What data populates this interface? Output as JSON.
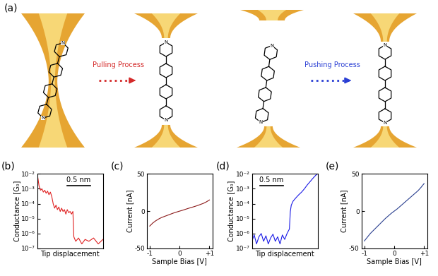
{
  "diagram": {
    "panel_label": "(a)",
    "atom_label": "N",
    "processes": [
      {
        "label": "Pulling Process",
        "color": "#d42a2a"
      },
      {
        "label": "Pushing Process",
        "color": "#2a3fd4"
      }
    ]
  },
  "chart_data": [
    {
      "panel_label": "(b)",
      "type": "line",
      "xlabel": "Tip displacement",
      "ylabel": "Conductance [G₀]",
      "log": "y",
      "tick_labels": "y",
      "color": "#e02020",
      "x": [
        0,
        0.02,
        0.04,
        0.07,
        0.1,
        0.13,
        0.16,
        0.19,
        0.22,
        0.25,
        0.28,
        0.31,
        0.34,
        0.37,
        0.4,
        0.43,
        0.46,
        0.49,
        0.52,
        0.55,
        0.58,
        0.61,
        0.64,
        0.67,
        0.7,
        0.73,
        0.76,
        0.78,
        0.82,
        0.88,
        0.95,
        1.02,
        1.1,
        1.2,
        1.3,
        1.4
      ],
      "values": [
        0.01,
        0.004,
        0.0015,
        0.0008,
        0.001,
        0.0006,
        0.0008,
        0.0005,
        0.0007,
        0.0004,
        0.0006,
        0.0003,
        0.0001,
        5e-05,
        8e-05,
        4e-05,
        6e-05,
        3e-05,
        5e-05,
        3e-05,
        4e-05,
        2e-05,
        4e-05,
        2.5e-05,
        3e-05,
        2e-05,
        3e-05,
        6e-07,
        3e-07,
        5e-07,
        2e-07,
        4e-07,
        3e-07,
        5e-07,
        2e-07,
        4e-07
      ],
      "xlim": [
        0,
        1.4
      ],
      "ylim": [
        1e-07,
        0.01
      ],
      "yticks": [
        {
          "value": 1e-07,
          "label": "10⁻⁷"
        },
        {
          "value": 1e-06,
          "label": "10⁻⁶"
        },
        {
          "value": 1e-05,
          "label": "10⁻⁵"
        },
        {
          "value": 0.0001,
          "label": "10⁻⁴"
        },
        {
          "value": 0.001,
          "label": "10⁻³"
        },
        {
          "value": 0.01,
          "label": "10⁻²"
        }
      ],
      "scale_bar": {
        "label": "0.5 nm",
        "length": 0.5
      }
    },
    {
      "panel_label": "(c)",
      "type": "line",
      "xlabel": "Sample Bias [V]",
      "ylabel": "Current [nA]",
      "color": "#8b1a1a",
      "x": [
        -1,
        -0.9,
        -0.8,
        -0.7,
        -0.6,
        -0.5,
        -0.4,
        -0.3,
        -0.2,
        -0.1,
        0,
        0.1,
        0.2,
        0.3,
        0.4,
        0.5,
        0.6,
        0.7,
        0.8,
        0.9,
        1
      ],
      "values": [
        -20,
        -16,
        -13,
        -10.5,
        -8.5,
        -7,
        -5.5,
        -4,
        -2.5,
        -1.2,
        0,
        1.2,
        2.5,
        3.8,
        5,
        6.2,
        7.5,
        9,
        10.5,
        12.5,
        15
      ],
      "xlim": [
        -1.1,
        1.1
      ],
      "ylim": [
        -50,
        50
      ],
      "xticks": [
        -1,
        0,
        {
          "value": 1,
          "label": "+1"
        }
      ],
      "yticks": [
        -50,
        0,
        50
      ]
    },
    {
      "panel_label": "(d)",
      "type": "line",
      "xlabel": "Tip displacement",
      "ylabel": "Conductance [G₀]",
      "log": "y",
      "tick_labels": "y",
      "color": "#1a1ae6",
      "x": [
        0,
        0.05,
        0.1,
        0.15,
        0.2,
        0.25,
        0.3,
        0.35,
        0.4,
        0.45,
        0.5,
        0.55,
        0.6,
        0.65,
        0.7,
        0.75,
        0.8,
        0.82,
        0.84,
        0.88,
        0.94,
        1.0,
        1.06,
        1.12,
        1.18,
        1.24,
        1.3,
        1.36,
        1.4
      ],
      "values": [
        3e-07,
        8e-07,
        2e-07,
        6e-07,
        1e-06,
        3e-07,
        7e-07,
        2e-07,
        5e-07,
        9e-07,
        3e-07,
        6e-07,
        2e-07,
        8e-07,
        4e-07,
        1e-06,
        2e-06,
        3e-05,
        8e-05,
        0.00015,
        0.00025,
        0.0004,
        0.0006,
        0.001,
        0.0018,
        0.003,
        0.005,
        0.008,
        0.01
      ],
      "xlim": [
        0,
        1.4
      ],
      "ylim": [
        1e-07,
        0.01
      ],
      "yticks": [
        {
          "value": 1e-07,
          "label": "10⁻⁷"
        },
        {
          "value": 1e-06,
          "label": "10⁻⁶"
        },
        {
          "value": 1e-05,
          "label": "10⁻⁵"
        },
        {
          "value": 0.0001,
          "label": "10⁻⁴"
        },
        {
          "value": 0.001,
          "label": "10⁻³"
        },
        {
          "value": 0.01,
          "label": "10⁻²"
        }
      ],
      "scale_bar": {
        "label": "0.5 nm",
        "length": 0.5
      }
    },
    {
      "panel_label": "(e)",
      "type": "line",
      "xlabel": "Sample Bias [V]",
      "ylabel": "Current [nA]",
      "color": "#2a3f8f",
      "x": [
        -1,
        -0.9,
        -0.8,
        -0.7,
        -0.6,
        -0.5,
        -0.4,
        -0.3,
        -0.2,
        -0.1,
        0,
        0.1,
        0.2,
        0.3,
        0.4,
        0.5,
        0.6,
        0.7,
        0.8,
        0.9,
        1
      ],
      "values": [
        -40,
        -35,
        -30,
        -26,
        -22,
        -18,
        -14,
        -10,
        -6.5,
        -3,
        0,
        3,
        6.5,
        10,
        13.5,
        17,
        20.5,
        24,
        27.5,
        32,
        37
      ],
      "xlim": [
        -1.1,
        1.1
      ],
      "ylim": [
        -50,
        50
      ],
      "xticks": [
        -1,
        0,
        {
          "value": 1,
          "label": "+1"
        }
      ],
      "yticks": [
        -50,
        0,
        50
      ]
    }
  ]
}
